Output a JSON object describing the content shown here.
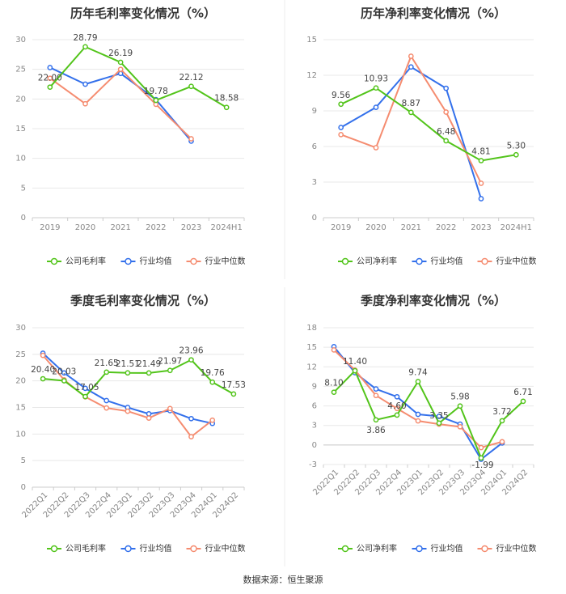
{
  "source": "数据来源：恒生聚源",
  "colors": {
    "company": "#52c41a",
    "avg": "#3370eb",
    "median": "#f58c70",
    "grid": "#e8e8e8",
    "axis_text": "#888888",
    "title": "#333333"
  },
  "chart_data": [
    {
      "type": "line",
      "title": "历年毛利率变化情况（%）",
      "categories": [
        "2019",
        "2020",
        "2021",
        "2022",
        "2023",
        "2024H1"
      ],
      "ylim": [
        0,
        30
      ],
      "yticks": [
        "0",
        "5",
        "10",
        "15",
        "20",
        "25",
        "30"
      ],
      "series": [
        {
          "name": "公司毛利率",
          "role": "company",
          "values": [
            22.0,
            28.79,
            26.19,
            19.78,
            22.12,
            18.58
          ],
          "labels": [
            "22.00",
            "28.79",
            "26.19",
            "19.78",
            "22.12",
            "18.58"
          ]
        },
        {
          "name": "行业均值",
          "role": "avg",
          "values": [
            25.3,
            22.5,
            24.3,
            19.9,
            12.9,
            null
          ]
        },
        {
          "name": "行业中位数",
          "role": "median",
          "values": [
            23.5,
            19.2,
            25.0,
            19.1,
            13.3,
            null
          ]
        }
      ]
    },
    {
      "type": "line",
      "title": "历年净利率变化情况（%）",
      "categories": [
        "2019",
        "2020",
        "2021",
        "2022",
        "2023",
        "2024H1"
      ],
      "ylim": [
        0,
        15
      ],
      "yticks": [
        "0",
        "3",
        "6",
        "9",
        "12",
        "15"
      ],
      "series": [
        {
          "name": "公司净利率",
          "role": "company",
          "values": [
            9.56,
            10.93,
            8.87,
            6.48,
            4.81,
            5.3
          ],
          "labels": [
            "9.56",
            "10.93",
            "8.87",
            "6.48",
            "4.81",
            "5.30"
          ]
        },
        {
          "name": "行业均值",
          "role": "avg",
          "values": [
            7.6,
            9.3,
            12.7,
            10.9,
            1.6,
            null
          ]
        },
        {
          "name": "行业中位数",
          "role": "median",
          "values": [
            7.0,
            5.9,
            13.6,
            8.9,
            2.9,
            null
          ]
        }
      ]
    },
    {
      "type": "line",
      "title": "季度毛利率变化情况（%）",
      "categories": [
        "2022Q1",
        "2022Q2",
        "2022Q3",
        "2022Q4",
        "2023Q1",
        "2023Q2",
        "2023Q3",
        "2023Q4",
        "2024Q1",
        "2024Q2"
      ],
      "ylim": [
        0,
        30
      ],
      "yticks": [
        "0",
        "5",
        "10",
        "15",
        "20",
        "25",
        "30"
      ],
      "series": [
        {
          "name": "公司毛利率",
          "role": "company",
          "values": [
            20.4,
            20.03,
            17.05,
            21.65,
            21.51,
            21.49,
            21.97,
            23.96,
            19.76,
            17.53
          ],
          "labels": [
            "20.40",
            "20.03",
            "17.05",
            "21.65",
            "21.51",
            "21.49",
            "21.97",
            "23.96",
            "19.76",
            "17.53"
          ]
        },
        {
          "name": "行业均值",
          "role": "avg",
          "values": [
            25.2,
            21.5,
            18.6,
            16.3,
            15.0,
            13.8,
            14.4,
            12.9,
            12.0,
            null
          ]
        },
        {
          "name": "行业中位数",
          "role": "median",
          "values": [
            24.8,
            20.2,
            17.0,
            14.9,
            14.3,
            13.0,
            14.8,
            9.5,
            12.6,
            null
          ]
        }
      ]
    },
    {
      "type": "line",
      "title": "季度净利率变化情况（%）",
      "categories": [
        "2022Q1",
        "2022Q2",
        "2022Q3",
        "2022Q4",
        "2023Q1",
        "2023Q2",
        "2023Q3",
        "2023Q4",
        "2024Q1",
        "2024Q2"
      ],
      "ylim": [
        -3,
        18
      ],
      "yticks": [
        "-3",
        "0",
        "3",
        "6",
        "9",
        "12",
        "15",
        "18"
      ],
      "series": [
        {
          "name": "公司净利率",
          "role": "company",
          "values": [
            8.1,
            11.4,
            3.86,
            4.6,
            9.74,
            3.35,
            5.98,
            -1.99,
            3.72,
            6.71
          ],
          "labels": [
            "8.10",
            "11.40",
            "3.86",
            "4.60",
            "9.74",
            "3.35",
            "5.98",
            "-1.99",
            "3.72",
            "6.71"
          ]
        },
        {
          "name": "行业均值",
          "role": "avg",
          "values": [
            15.1,
            11.1,
            8.6,
            7.4,
            4.7,
            4.4,
            3.2,
            -2.2,
            0.3,
            null
          ]
        },
        {
          "name": "行业中位数",
          "role": "median",
          "values": [
            14.6,
            11.5,
            7.6,
            5.6,
            3.7,
            3.2,
            2.8,
            -0.4,
            0.5,
            null
          ]
        }
      ]
    }
  ]
}
